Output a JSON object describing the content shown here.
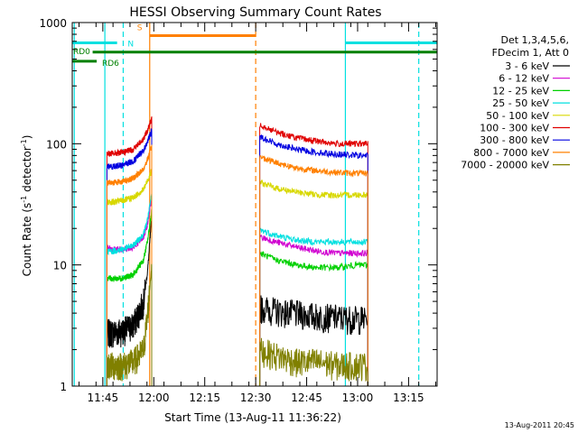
{
  "chart_data": {
    "type": "line",
    "title": "HESSI Observing Summary Count Rates",
    "xlabel": "Start Time (13-Aug-11 11:36:22)",
    "ylabel": "Count Rate (s",
    "ylabel_sup1": "-1",
    "ylabel_mid": " detector",
    "ylabel_sup2": "-1",
    "ylabel_end": ")",
    "y_scale": "log",
    "ylim": [
      1,
      1000
    ],
    "xlim_minutes": [
      11.6,
      13.39
    ],
    "x_tick_labels": [
      "11:45",
      "12:00",
      "12:15",
      "12:30",
      "12:45",
      "13:00",
      "13:15"
    ],
    "y_tick_labels": [
      "1",
      "10",
      "100",
      "1000"
    ],
    "grid": false,
    "legend_position": "right-outside",
    "legend": {
      "header1": "Det 1,3,4,5,6,",
      "header2": "FDecim 1, Att 0"
    },
    "series": [
      {
        "name": "3 - 6 keV",
        "color": "#000000",
        "segments": [
          {
            "x": [
              11.77,
              11.8,
              11.85,
              11.9,
              11.95,
              11.97,
              11.99
            ],
            "y": [
              2.8,
              2.8,
              2.9,
              3.2,
              5,
              9,
              25
            ]
          },
          {
            "x": [
              12.52,
              12.6,
              12.7,
              12.8,
              12.9,
              13.0,
              13.05
            ],
            "y": [
              4.5,
              4.2,
              4.0,
              3.8,
              3.7,
              3.6,
              3.6
            ]
          }
        ]
      },
      {
        "name": "6 - 12 keV",
        "color": "#d000d0",
        "segments": [
          {
            "x": [
              11.77,
              11.8,
              11.85,
              11.9,
              11.95,
              11.97,
              11.99
            ],
            "y": [
              14,
              13.5,
              13.5,
              14,
              17,
              22,
              36
            ]
          },
          {
            "x": [
              12.52,
              12.6,
              12.7,
              12.8,
              12.9,
              13.0,
              13.05
            ],
            "y": [
              17,
              15.5,
              14,
              13,
              12.5,
              12.5,
              12.5
            ]
          }
        ]
      },
      {
        "name": "12 - 25 keV",
        "color": "#00d000",
        "segments": [
          {
            "x": [
              11.77,
              11.8,
              11.85,
              11.9,
              11.95,
              11.97,
              11.99
            ],
            "y": [
              7.8,
              7.7,
              7.8,
              8.3,
              11,
              16,
              28
            ]
          },
          {
            "x": [
              12.52,
              12.6,
              12.7,
              12.8,
              12.9,
              13.0,
              13.05
            ],
            "y": [
              12.5,
              11,
              10,
              9.5,
              9.5,
              10,
              10
            ]
          }
        ]
      },
      {
        "name": "25 - 50 keV",
        "color": "#00e0e0",
        "segments": [
          {
            "x": [
              11.77,
              11.8,
              11.85,
              11.9,
              11.95,
              11.97,
              11.99
            ],
            "y": [
              13,
              13,
              13.5,
              14.5,
              18,
              24,
              38
            ]
          },
          {
            "x": [
              12.52,
              12.6,
              12.7,
              12.8,
              12.9,
              13.0,
              13.05
            ],
            "y": [
              19.5,
              17.5,
              16,
              15.5,
              15.5,
              15.5,
              15.5
            ]
          }
        ]
      },
      {
        "name": "50 - 100 keV",
        "color": "#d8d800",
        "segments": [
          {
            "x": [
              11.77,
              11.8,
              11.85,
              11.9,
              11.95,
              11.97,
              11.99
            ],
            "y": [
              33,
              33,
              34,
              36,
              42,
              50,
              60
            ]
          },
          {
            "x": [
              12.52,
              12.6,
              12.7,
              12.8,
              12.9,
              13.0,
              13.05
            ],
            "y": [
              48,
              43,
              40,
              38,
              37.5,
              38,
              38
            ]
          }
        ]
      },
      {
        "name": "100 - 300 keV",
        "color": "#e00000",
        "segments": [
          {
            "x": [
              11.77,
              11.8,
              11.85,
              11.9,
              11.95,
              11.97,
              11.99
            ],
            "y": [
              83,
              83,
              85,
              90,
              110,
              130,
              160
            ]
          },
          {
            "x": [
              12.52,
              12.6,
              12.7,
              12.8,
              12.9,
              13.0,
              13.05
            ],
            "y": [
              145,
              125,
              112,
              105,
              100,
              100,
              100
            ]
          }
        ]
      },
      {
        "name": "300 - 800 keV",
        "color": "#0000e0",
        "segments": [
          {
            "x": [
              11.77,
              11.8,
              11.85,
              11.9,
              11.95,
              11.97,
              11.99
            ],
            "y": [
              65,
              65,
              67,
              72,
              88,
              105,
              130
            ]
          },
          {
            "x": [
              12.52,
              12.6,
              12.7,
              12.8,
              12.9,
              13.0,
              13.05
            ],
            "y": [
              115,
              100,
              90,
              85,
              82,
              80,
              80
            ]
          }
        ]
      },
      {
        "name": "800 - 7000 keV",
        "color": "#ff8000",
        "segments": [
          {
            "x": [
              11.77,
              11.8,
              11.85,
              11.9,
              11.95,
              11.97,
              11.99
            ],
            "y": [
              48,
              48,
              49,
              52,
              62,
              75,
              95
            ]
          },
          {
            "x": [
              12.52,
              12.6,
              12.7,
              12.8,
              12.9,
              13.0,
              13.05
            ],
            "y": [
              78,
              70,
              63,
              60,
              58,
              57,
              57
            ]
          }
        ]
      },
      {
        "name": "7000 - 20000 keV",
        "color": "#808000",
        "segments": [
          {
            "x": [
              11.77,
              11.8,
              11.85,
              11.9,
              11.95,
              11.97,
              11.99
            ],
            "y": [
              1.5,
              1.5,
              1.5,
              1.6,
              2.0,
              4,
              10
            ]
          },
          {
            "x": [
              12.52,
              12.6,
              12.7,
              12.8,
              12.9,
              13.0,
              13.05
            ],
            "y": [
              2.0,
              1.8,
              1.6,
              1.6,
              1.5,
              1.5,
              1.5
            ]
          }
        ]
      }
    ],
    "flags": [
      {
        "label": "N",
        "color": "#00e0e0",
        "segments": [
          [
            11.6,
            11.82
          ],
          [
            12.94,
            13.39
          ]
        ],
        "y": 680
      },
      {
        "label": "S",
        "color": "#ff8000",
        "segments": [
          [
            11.98,
            12.5
          ]
        ],
        "y": 780
      },
      {
        "label": "RD0",
        "color": "#008000",
        "segments": [
          [
            11.7,
            13.39
          ]
        ],
        "y": 570
      },
      {
        "label": "RD6",
        "color": "#008000",
        "segments": [
          [
            11.6,
            11.72
          ]
        ],
        "y": 480
      }
    ],
    "vertical_lines": [
      {
        "x": 11.76,
        "color": "#00e0e0",
        "style": "solid"
      },
      {
        "x": 11.85,
        "color": "#00e0e0",
        "style": "dashed"
      },
      {
        "x": 11.98,
        "color": "#ff8000",
        "style": "solid"
      },
      {
        "x": 12.5,
        "color": "#ff8000",
        "style": "dashed"
      },
      {
        "x": 12.94,
        "color": "#00e0e0",
        "style": "solid"
      },
      {
        "x": 13.3,
        "color": "#00e0e0",
        "style": "dashed"
      },
      {
        "x": 11.61,
        "color": "#00e0e0",
        "style": "solid"
      }
    ],
    "timestamp": "13-Aug-2011 20:45"
  }
}
